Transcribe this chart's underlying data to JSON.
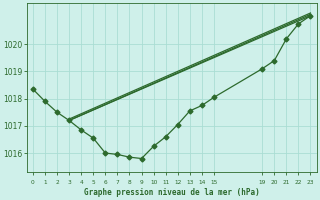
{
  "bg_color": "#cff0ea",
  "line_color": "#2d6a2d",
  "grid_color": "#aaddd4",
  "title": "Graphe pression niveau de la mer (hPa)",
  "ylabel_ticks": [
    1016,
    1017,
    1018,
    1019,
    1020
  ],
  "xlim_min": -0.5,
  "xlim_max": 23.5,
  "ylim_min": 1015.3,
  "ylim_max": 1021.5,
  "series": [
    {
      "x": [
        0,
        1,
        2,
        3,
        4,
        5,
        6,
        7,
        8,
        9,
        10,
        11,
        12,
        13,
        14,
        15,
        19,
        20,
        21,
        22,
        23
      ],
      "y": [
        1018.35,
        1017.9,
        1017.5,
        1017.2,
        1016.85,
        1016.55,
        1016.0,
        1015.95,
        1015.85,
        1015.8,
        1016.25,
        1016.6,
        1017.05,
        1017.55,
        1017.75,
        1018.05,
        1019.1,
        1019.4,
        1020.2,
        1020.75,
        1021.05
      ]
    },
    {
      "x": [
        3,
        23
      ],
      "y": [
        1017.2,
        1021.05
      ]
    },
    {
      "x": [
        3,
        23
      ],
      "y": [
        1017.2,
        1021.1
      ]
    },
    {
      "x": [
        3,
        23
      ],
      "y": [
        1017.25,
        1021.15
      ]
    }
  ],
  "xtick_positions": [
    0,
    1,
    2,
    3,
    4,
    5,
    6,
    7,
    8,
    9,
    10,
    11,
    12,
    13,
    14,
    15,
    19,
    20,
    21,
    22,
    23
  ],
  "xtick_labels": [
    "0",
    "1",
    "2",
    "3",
    "4",
    "5",
    "6",
    "7",
    "8",
    "9",
    "10",
    "11",
    "12",
    "13",
    "14",
    "15",
    "19",
    "20",
    "21",
    "22",
    "23"
  ]
}
